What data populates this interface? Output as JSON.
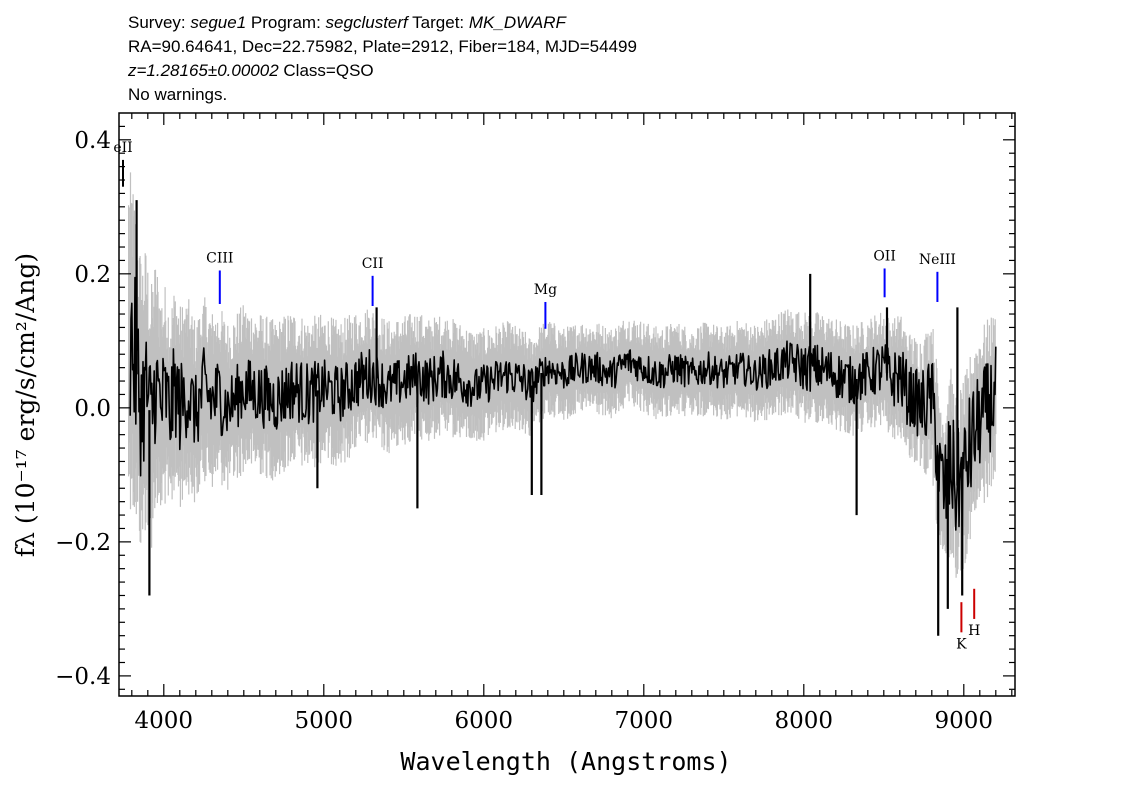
{
  "header": {
    "line1": {
      "survey_label": "Survey:",
      "survey_value": "segue1",
      "program_label": "Program:",
      "program_value": "segclusterf",
      "target_label": "Target:",
      "target_value": "MK_DWARF"
    },
    "line2": "RA=90.64641, Dec=22.75982, Plate=2912, Fiber=184, MJD=54499",
    "line3": {
      "redshift": "z=1.28165±0.00002",
      "class": "Class=QSO"
    },
    "line4": "No warnings."
  },
  "chart_data": {
    "type": "line",
    "xlabel": "Wavelength (Angstroms)",
    "ylabel": "fλ (10⁻¹⁷ erg/s/cm²/Ang)",
    "xlim": [
      3720,
      9320
    ],
    "ylim": [
      -0.43,
      0.44
    ],
    "xticks": [
      4000,
      5000,
      6000,
      7000,
      8000,
      9000
    ],
    "xtick_labels": [
      "4000",
      "5000",
      "6000",
      "7000",
      "8000",
      "9000"
    ],
    "yticks": [
      0.4,
      0.2,
      0.0,
      -0.2,
      -0.4
    ],
    "ytick_labels": [
      "0.4",
      "0.2",
      "0.0",
      "−0.2",
      "−0.4"
    ],
    "grid": false,
    "series": [
      {
        "role": "flux",
        "color": "#000000",
        "x": [
          3800,
          3830,
          3860,
          3890,
          3920,
          3950,
          3980,
          4010,
          4040,
          4070,
          4100,
          4150,
          4200,
          4250,
          4300,
          4350,
          4400,
          4500,
          4600,
          4700,
          4800,
          4900,
          5000,
          5100,
          5200,
          5300,
          5400,
          5500,
          5580,
          5650,
          5750,
          5850,
          5950,
          6050,
          6150,
          6250,
          6290,
          6350,
          6400,
          6500,
          6600,
          6700,
          6800,
          6900,
          7000,
          7100,
          7200,
          7300,
          7400,
          7500,
          7600,
          7700,
          7800,
          7900,
          8000,
          8100,
          8200,
          8300,
          8400,
          8500,
          8550,
          8600,
          8650,
          8700,
          8750,
          8800,
          8850,
          8880,
          8920,
          8950,
          9000,
          9050,
          9100,
          9150,
          9200
        ],
        "y": [
          0.1,
          0.05,
          0.0,
          0.03,
          -0.02,
          0.04,
          0.0,
          0.02,
          -0.01,
          0.03,
          0.0,
          0.02,
          -0.01,
          0.03,
          0.01,
          0.02,
          0.0,
          0.03,
          0.02,
          0.01,
          0.03,
          0.02,
          0.03,
          0.02,
          0.04,
          0.05,
          0.03,
          0.04,
          0.05,
          0.04,
          0.05,
          0.04,
          0.03,
          0.04,
          0.05,
          0.04,
          0.03,
          0.05,
          0.06,
          0.05,
          0.06,
          0.06,
          0.05,
          0.07,
          0.06,
          0.05,
          0.06,
          0.05,
          0.06,
          0.05,
          0.06,
          0.05,
          0.06,
          0.07,
          0.06,
          0.06,
          0.05,
          0.04,
          0.05,
          0.06,
          0.04,
          0.05,
          0.02,
          0.01,
          0.0,
          0.02,
          -0.1,
          -0.13,
          -0.08,
          -0.12,
          -0.1,
          -0.05,
          -0.02,
          0.0,
          0.02
        ],
        "noise": [
          0.12,
          0.1,
          0.09,
          0.08,
          0.08,
          0.07,
          0.07,
          0.06,
          0.06,
          0.06,
          0.06,
          0.05,
          0.05,
          0.05,
          0.05,
          0.05,
          0.04,
          0.04,
          0.04,
          0.04,
          0.04,
          0.04,
          0.035,
          0.035,
          0.035,
          0.035,
          0.03,
          0.03,
          0.03,
          0.03,
          0.03,
          0.03,
          0.025,
          0.025,
          0.025,
          0.025,
          0.025,
          0.02,
          0.02,
          0.02,
          0.02,
          0.02,
          0.02,
          0.02,
          0.02,
          0.02,
          0.02,
          0.02,
          0.02,
          0.02,
          0.02,
          0.02,
          0.025,
          0.025,
          0.03,
          0.03,
          0.03,
          0.03,
          0.03,
          0.035,
          0.035,
          0.04,
          0.04,
          0.04,
          0.05,
          0.05,
          0.06,
          0.07,
          0.07,
          0.07,
          0.07,
          0.07,
          0.06,
          0.06,
          0.06
        ]
      },
      {
        "role": "error",
        "color": "#c0c0c0",
        "x": [
          3800,
          3900,
          4000,
          4200,
          4500,
          5000,
          5500,
          6000,
          6500,
          7000,
          7500,
          8000,
          8400,
          8700,
          8900,
          9100,
          9200
        ],
        "sigma": [
          0.18,
          0.15,
          0.12,
          0.1,
          0.09,
          0.08,
          0.07,
          0.06,
          0.05,
          0.05,
          0.05,
          0.06,
          0.06,
          0.07,
          0.1,
          0.1,
          0.09
        ]
      }
    ],
    "spikes": [
      {
        "x": 3830,
        "y": 0.31
      },
      {
        "x": 3910,
        "y": -0.28
      },
      {
        "x": 4960,
        "y": -0.12
      },
      {
        "x": 5585,
        "y": -0.15
      },
      {
        "x": 5330,
        "y": 0.15
      },
      {
        "x": 6300,
        "y": -0.13
      },
      {
        "x": 6360,
        "y": -0.13
      },
      {
        "x": 8040,
        "y": 0.2
      },
      {
        "x": 8330,
        "y": -0.16
      },
      {
        "x": 8520,
        "y": 0.15
      },
      {
        "x": 8840,
        "y": -0.34
      },
      {
        "x": 8900,
        "y": -0.3
      },
      {
        "x": 8960,
        "y": 0.15
      },
      {
        "x": 8990,
        "y": -0.28
      }
    ],
    "annotations": [
      {
        "label": "eII",
        "x": 3745,
        "y": 0.38,
        "y_top": 0.37,
        "y_bottom": 0.33,
        "color": "#000000",
        "label_pos": "above"
      },
      {
        "label": "CIII",
        "x": 4350,
        "y": 0.205,
        "y_top": 0.205,
        "y_bottom": 0.155,
        "color": "#0000ff",
        "label_pos": "above"
      },
      {
        "label": "CII",
        "x": 5305,
        "y": 0.197,
        "y_top": 0.197,
        "y_bottom": 0.152,
        "color": "#0000ff",
        "label_pos": "above"
      },
      {
        "label": "Mg",
        "x": 6385,
        "y": 0.158,
        "y_top": 0.158,
        "y_bottom": 0.118,
        "color": "#0000ff",
        "label_pos": "above"
      },
      {
        "label": "OII",
        "x": 8505,
        "y": 0.208,
        "y_top": 0.208,
        "y_bottom": 0.165,
        "color": "#0000ff",
        "label_pos": "above"
      },
      {
        "label": "NeIII",
        "x": 8835,
        "y": 0.203,
        "y_top": 0.203,
        "y_bottom": 0.158,
        "color": "#0000ff",
        "label_pos": "above"
      },
      {
        "label": "K",
        "x": 8985,
        "y": -0.29,
        "y_top": -0.29,
        "y_bottom": -0.335,
        "color": "#cc0000",
        "label_pos": "below"
      },
      {
        "label": "H",
        "x": 9065,
        "y": -0.27,
        "y_top": -0.27,
        "y_bottom": -0.315,
        "color": "#cc0000",
        "label_pos": "below"
      }
    ]
  }
}
